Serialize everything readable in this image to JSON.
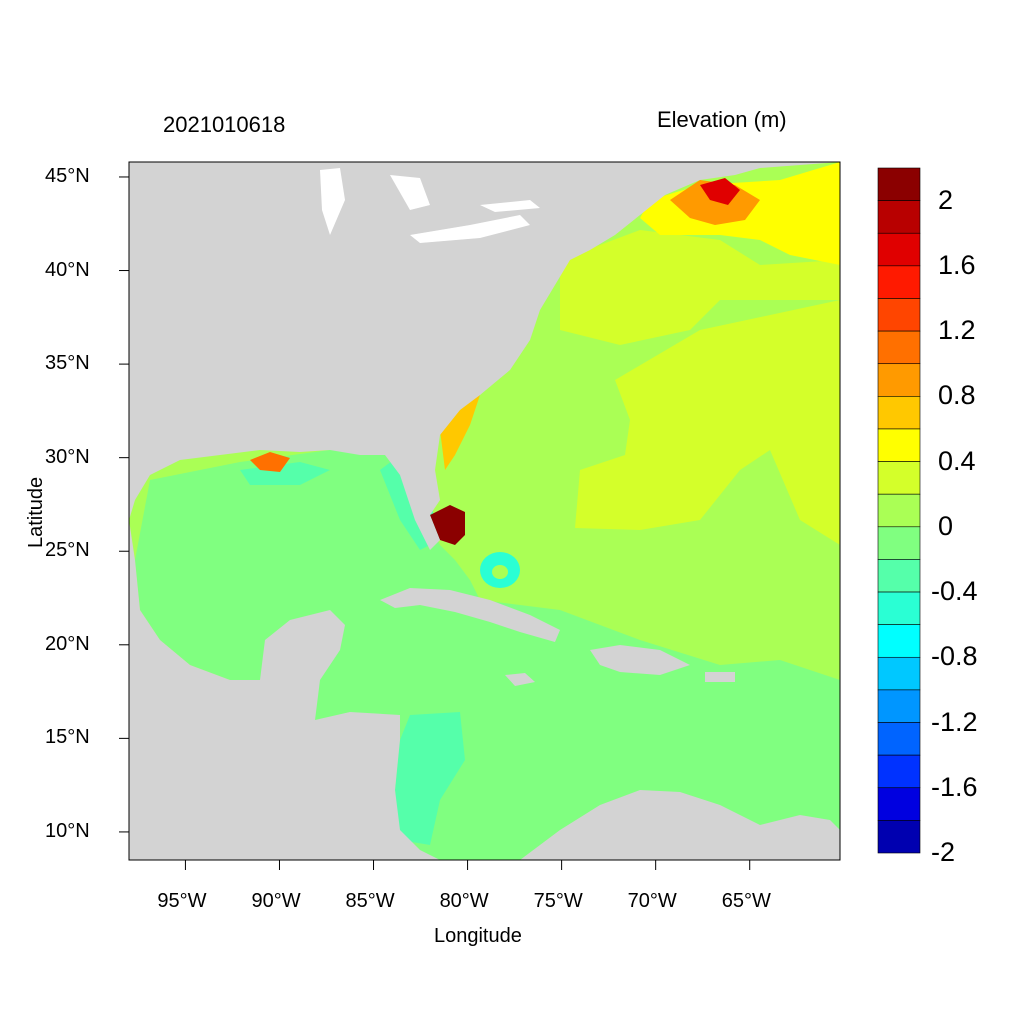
{
  "header": {
    "date_stamp": "2021010618",
    "variable": "Elevation (m)"
  },
  "axes": {
    "x_title": "Longitude",
    "y_title": "Latitude",
    "x_ticks": [
      "95°W",
      "90°W",
      "85°W",
      "80°W",
      "75°W",
      "70°W",
      "65°W"
    ],
    "x_tick_values": [
      -95,
      -90,
      -85,
      -80,
      -75,
      -70,
      -65
    ],
    "y_ticks": [
      "45°N",
      "40°N",
      "35°N",
      "30°N",
      "25°N",
      "20°N",
      "15°N",
      "10°N"
    ],
    "y_tick_values": [
      45,
      40,
      35,
      30,
      25,
      20,
      15,
      10
    ],
    "lon_range": [
      -98,
      -60.2
    ],
    "lat_range": [
      8.5,
      45.8
    ]
  },
  "colorbar": {
    "labels": [
      "2",
      "1.6",
      "1.2",
      "0.8",
      "0.4",
      "0",
      "-0.4",
      "-0.8",
      "-1.2",
      "-1.6",
      "-2"
    ],
    "colors_top_to_bottom": [
      "#8b0000",
      "#b80000",
      "#e00000",
      "#ff1a00",
      "#ff4500",
      "#ff7000",
      "#ff9a00",
      "#ffc800",
      "#ffff00",
      "#d4ff2a",
      "#aaff55",
      "#80ff80",
      "#55ffaa",
      "#2affd4",
      "#00ffff",
      "#00c8ff",
      "#0096ff",
      "#0064ff",
      "#0032ff",
      "#0000e0",
      "#0000b0"
    ]
  },
  "colors": {
    "land": "#d3d3d3",
    "sea_zero": "#80ff80",
    "sea_positive_low": "#aaff55",
    "sea_positive": "#d4ff2a"
  }
}
